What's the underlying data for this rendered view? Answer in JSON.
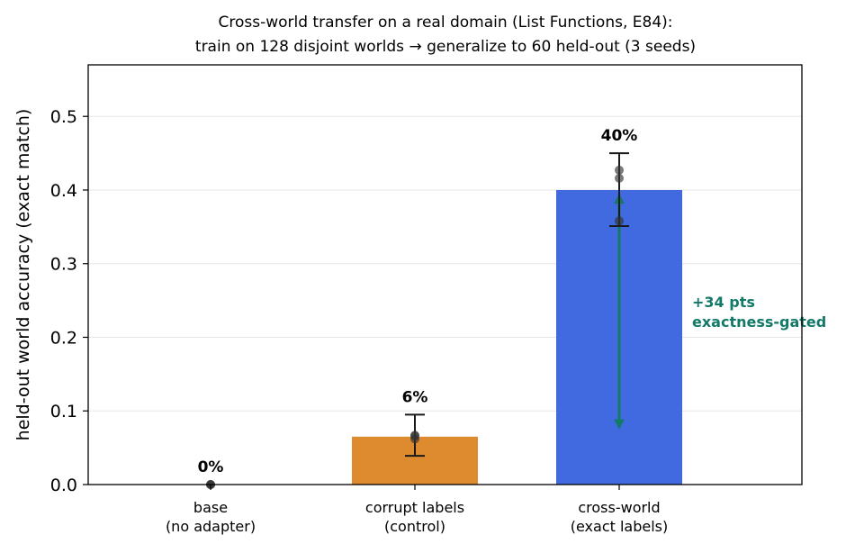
{
  "chart_data": {
    "type": "bar",
    "title": "Cross-world transfer on a real domain (List Functions, E84):",
    "subtitle": "train on 128 disjoint worlds → generalize to 60 held-out (3 seeds)",
    "xlabel": "",
    "ylabel": "held-out world accuracy (exact match)",
    "ylim": [
      0,
      0.57
    ],
    "yticks": [
      "0.0",
      "0.1",
      "0.2",
      "0.3",
      "0.4",
      "0.5"
    ],
    "grid": true,
    "categories": [
      [
        "base",
        "(no adapter)"
      ],
      [
        "corrupt labels",
        "(control)"
      ],
      [
        "cross-world",
        "(exact labels)"
      ]
    ],
    "values": [
      0.0,
      0.065,
      0.4
    ],
    "error_low": [
      0.0,
      0.039,
      0.351
    ],
    "error_high": [
      0.0,
      0.095,
      0.45
    ],
    "seed_points": [
      [
        0.0,
        0.0,
        0.0
      ],
      [
        0.062,
        0.066,
        0.067
      ],
      [
        0.358,
        0.416,
        0.427
      ]
    ],
    "data_labels": [
      "0%",
      "6%",
      "40%"
    ],
    "colors": [
      "#cccccc",
      "#de8b2f",
      "#4169e0"
    ],
    "annotation": {
      "lines": [
        "+34 pts",
        "exactness-gated"
      ],
      "color": "#137a68",
      "from": 0.075,
      "to": 0.395
    }
  }
}
